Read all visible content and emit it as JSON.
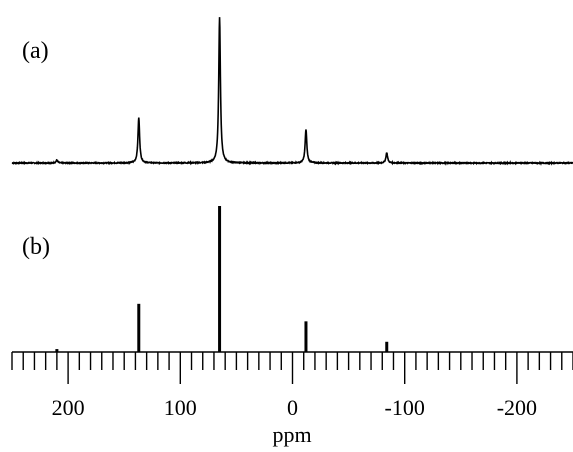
{
  "chart_data": {
    "type": "line",
    "title": "",
    "xlabel": "ppm",
    "ylabel": "",
    "x_axis_reversed": true,
    "xlim": [
      250,
      -250
    ],
    "x_ticks_major": [
      200,
      100,
      0,
      -100,
      -200
    ],
    "x_tick_labels": [
      "200",
      "100",
      "0",
      "-100",
      "-200"
    ],
    "x_minor_tick_step": 10,
    "grid": false,
    "legend": "none",
    "panels": [
      {
        "label": "(a)",
        "kind": "experimental spectrum",
        "peaks": [
          {
            "ppm": 210,
            "relative_intensity": 0.02
          },
          {
            "ppm": 137,
            "relative_intensity": 0.31
          },
          {
            "ppm": 65,
            "relative_intensity": 1.0
          },
          {
            "ppm": -12,
            "relative_intensity": 0.23
          },
          {
            "ppm": -84,
            "relative_intensity": 0.07
          }
        ]
      },
      {
        "label": "(b)",
        "kind": "stick spectrum",
        "peaks": [
          {
            "ppm": 210,
            "relative_intensity": 0.02
          },
          {
            "ppm": 137,
            "relative_intensity": 0.33
          },
          {
            "ppm": 65,
            "relative_intensity": 1.0
          },
          {
            "ppm": -12,
            "relative_intensity": 0.21
          },
          {
            "ppm": -84,
            "relative_intensity": 0.07
          }
        ]
      }
    ]
  }
}
